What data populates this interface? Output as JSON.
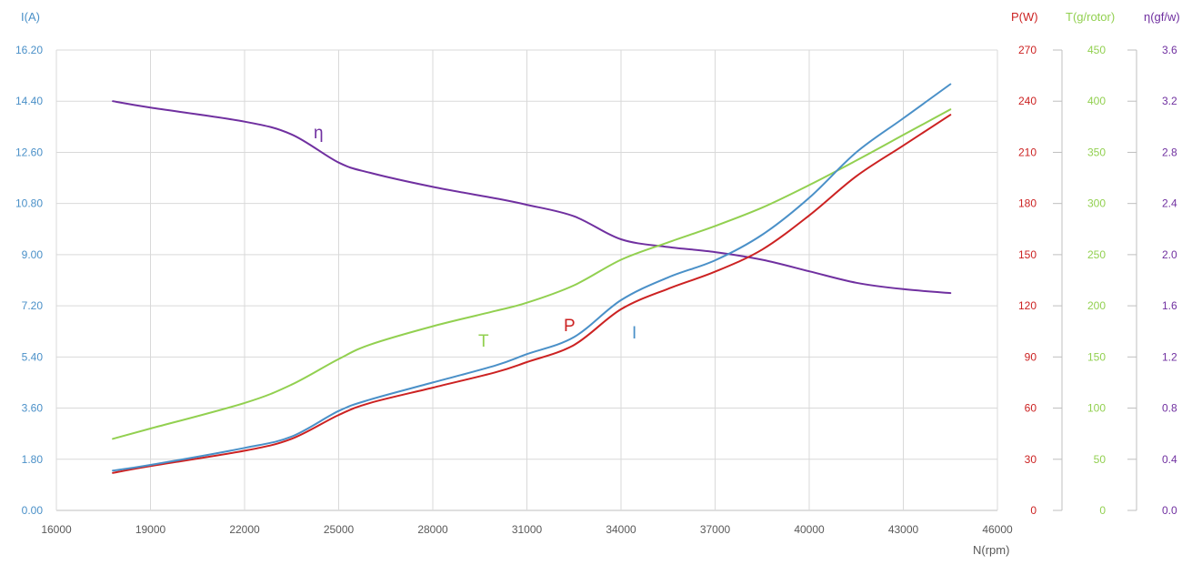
{
  "chart_data": {
    "type": "line",
    "xlabel": "N(rpm)",
    "xlim": [
      16000,
      46000
    ],
    "x_ticks": [
      "16000",
      "19000",
      "22000",
      "25000",
      "28000",
      "31000",
      "34000",
      "37000",
      "40000",
      "43000",
      "46000"
    ],
    "grid": "vertical and horizontal",
    "axes": [
      {
        "id": "I",
        "label": "I(A)",
        "side": "left",
        "range": [
          0,
          16.2
        ],
        "color": "#4a90c8",
        "ticks": [
          "0.00",
          "1.80",
          "3.60",
          "5.40",
          "7.20",
          "9.00",
          "10.80",
          "12.60",
          "14.40",
          "16.20"
        ]
      },
      {
        "id": "P",
        "label": "P(W)",
        "side": "right",
        "range": [
          0,
          270
        ],
        "color": "#cc2222",
        "ticks": [
          "0",
          "30",
          "60",
          "90",
          "120",
          "150",
          "180",
          "210",
          "240",
          "270"
        ]
      },
      {
        "id": "T",
        "label": "T(g/rotor)",
        "side": "right",
        "range": [
          0,
          450
        ],
        "color": "#92d050",
        "ticks": [
          "0",
          "50",
          "100",
          "150",
          "200",
          "250",
          "300",
          "350",
          "400",
          "450"
        ]
      },
      {
        "id": "eta",
        "label": "η(gf/w)",
        "side": "right",
        "range": [
          0,
          3.6
        ],
        "color": "#7030a0",
        "ticks": [
          "0.0",
          "0.4",
          "0.8",
          "1.2",
          "1.6",
          "2.0",
          "2.4",
          "2.8",
          "3.2",
          "3.6"
        ]
      }
    ],
    "series": [
      {
        "name": "I",
        "axis": "I",
        "color": "#4a90c8",
        "x": [
          17800,
          19000,
          22000,
          23500,
          25000,
          26000,
          28000,
          30000,
          31000,
          32500,
          34000,
          35500,
          37000,
          38500,
          40000,
          41500,
          43000,
          44500
        ],
        "y": [
          1.4,
          1.6,
          2.2,
          2.6,
          3.5,
          3.9,
          4.5,
          5.1,
          5.5,
          6.1,
          7.4,
          8.2,
          8.8,
          9.7,
          11.0,
          12.6,
          13.8,
          15.0
        ]
      },
      {
        "name": "P",
        "axis": "P",
        "color": "#cc2222",
        "x": [
          17800,
          19000,
          22000,
          23500,
          25000,
          26000,
          28000,
          30000,
          31000,
          32500,
          34000,
          35500,
          37000,
          38500,
          40000,
          41500,
          43000,
          44500
        ],
        "y": [
          22,
          26,
          35,
          42,
          56,
          63,
          72,
          81,
          87,
          97,
          118,
          130,
          140,
          153,
          173,
          196,
          214,
          232
        ]
      },
      {
        "name": "T",
        "axis": "T",
        "color": "#92d050",
        "x": [
          17800,
          19000,
          22000,
          23500,
          25000,
          26000,
          28000,
          30000,
          31000,
          32500,
          34000,
          35500,
          37000,
          38500,
          40000,
          41500,
          43000,
          44500
        ],
        "y": [
          70,
          80,
          105,
          123,
          148,
          162,
          180,
          195,
          203,
          220,
          245,
          262,
          278,
          296,
          318,
          342,
          367,
          392
        ]
      },
      {
        "name": "η",
        "axis": "eta",
        "color": "#7030a0",
        "x": [
          17800,
          19000,
          22000,
          23500,
          25000,
          26000,
          28000,
          30000,
          31000,
          32500,
          34000,
          35500,
          37000,
          38500,
          40000,
          41500,
          43000,
          44500
        ],
        "y": [
          3.2,
          3.15,
          3.04,
          2.94,
          2.72,
          2.64,
          2.53,
          2.44,
          2.39,
          2.3,
          2.12,
          2.06,
          2.02,
          1.96,
          1.87,
          1.78,
          1.73,
          1.7
        ]
      }
    ]
  }
}
